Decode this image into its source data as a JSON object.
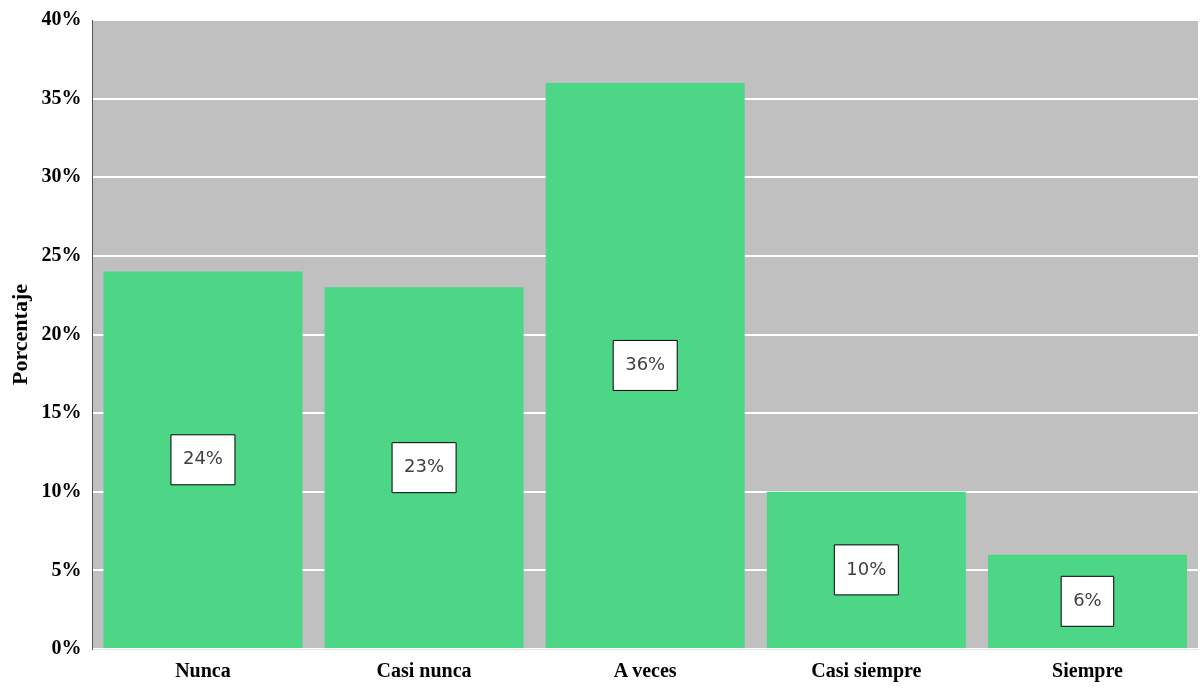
{
  "chart_data": {
    "type": "bar",
    "ylabel": "Porcentaje",
    "categories": [
      "Nunca",
      "Casi nunca",
      "A veces",
      "Casi siempre",
      "Siempre"
    ],
    "values": [
      24,
      23,
      36,
      10,
      6
    ],
    "value_labels": [
      "24%",
      "23%",
      "36%",
      "10%",
      "6%"
    ],
    "color": "#4cd686",
    "ylim": [
      0,
      40
    ],
    "yticks": [
      {
        "value": 0,
        "label": "0%"
      },
      {
        "value": 5,
        "label": "5%"
      },
      {
        "value": 10,
        "label": "10%"
      },
      {
        "value": 15,
        "label": "15%"
      },
      {
        "value": 20,
        "label": "20%"
      },
      {
        "value": 25,
        "label": "25%"
      },
      {
        "value": 30,
        "label": "30%"
      },
      {
        "value": 35,
        "label": "35%"
      },
      {
        "value": 40,
        "label": "40%"
      }
    ],
    "grid": "y",
    "legend": false
  }
}
